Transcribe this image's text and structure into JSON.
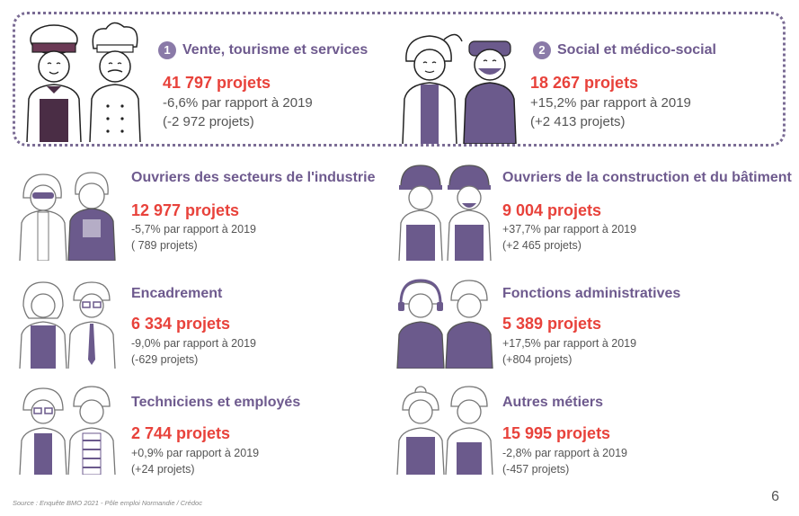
{
  "featured": [
    {
      "num": "1",
      "title": "Vente, tourisme et services",
      "projects": "41 797 projets",
      "change": "-6,6% par rapport à 2019",
      "delta": "(-2 972 projets)",
      "figure_icon": "vendor-and-chef-icon"
    },
    {
      "num": "2",
      "title": "Social et médico-social",
      "projects": "18 267 projets",
      "change": "+15,2% par rapport à 2019",
      "delta": "(+2 413 projets)",
      "figure_icon": "care-workers-icon"
    }
  ],
  "categories": [
    {
      "title": "Ouvriers des secteurs de l'industrie",
      "projects": "12 977 projets",
      "change": "-5,7% par rapport à 2019",
      "delta": "( 789 projets)"
    },
    {
      "title": "Ouvriers de la construction et du bâtiment",
      "projects": "9 004 projets",
      "change": "+37,7% par rapport à 2019",
      "delta": "(+2 465 projets)"
    },
    {
      "title": "Encadrement",
      "projects": "6 334 projets",
      "change": "-9,0% par rapport à 2019",
      "delta": "(-629 projets)"
    },
    {
      "title": "Fonctions administratives",
      "projects": "5 389 projets",
      "change": "+17,5% par rapport à 2019",
      "delta": "(+804 projets)"
    },
    {
      "title": "Techniciens et employés",
      "projects": "2 744 projets",
      "change": "+0,9% par rapport à 2019",
      "delta": "(+24 projets)"
    },
    {
      "title": "Autres métiers",
      "projects": "15 995 projets",
      "change": "-2,8% par rapport à 2019",
      "delta": "(-457 projets)"
    }
  ],
  "source": "Source : Enquête BMO 2021 - Pôle emploi Normandie / Crédoc",
  "page_number": "6",
  "colors": {
    "accent_purple": "#6e5a8e",
    "figure_purple": "#6b5a8c",
    "number_red": "#e8423b",
    "text_gray": "#555555"
  }
}
